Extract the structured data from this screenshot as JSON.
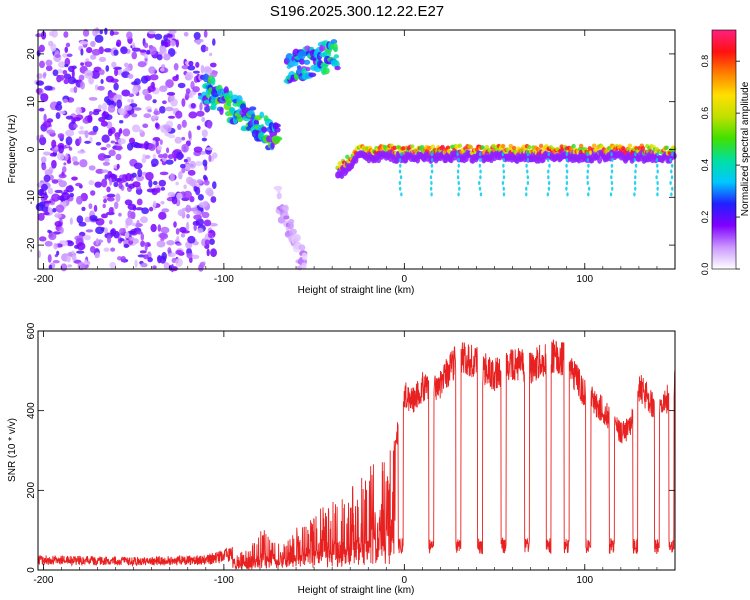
{
  "title": "S196.2025.300.12.22.E27",
  "chart_data": [
    {
      "type": "heatmap",
      "xlabel": "Height of straight line (km)",
      "ylabel": "Frequency (Hz)",
      "xlim": [
        -203,
        150
      ],
      "ylim": [
        -25,
        25
      ],
      "xticks": [
        -200,
        -100,
        0,
        100
      ],
      "xtick_labels": [
        "-200",
        "-100",
        "0",
        "100"
      ],
      "yticks": [
        -20,
        -10,
        0,
        10,
        20
      ],
      "ytick_labels": [
        "-20",
        "-10",
        "0",
        "10",
        "20"
      ],
      "colorbar": {
        "label": "Normalized spectral amplitude",
        "range": [
          0,
          0.92
        ],
        "ticks": [
          0,
          0.2,
          0.4,
          0.6,
          0.8
        ],
        "tick_labels": [
          "0.0",
          "0.2",
          "0.4",
          "0.6",
          "0.8"
        ],
        "colors": [
          "#ffffff",
          "#cc99ff",
          "#8000ff",
          "#2020ff",
          "#00c8ff",
          "#00e0a0",
          "#40e000",
          "#c0e000",
          "#ffe000",
          "#ff8000",
          "#ff1010",
          "#ff2080"
        ]
      },
      "features": [
        {
          "name": "noise",
          "x": [
            -203,
            -105
          ],
          "freq": [
            -25,
            25
          ],
          "amplitude": 0.15
        },
        {
          "name": "track-1",
          "x": [
            -112,
            -70
          ],
          "freq": [
            13,
            2
          ],
          "amplitude": 0.45
        },
        {
          "name": "track-2",
          "x": [
            -65,
            -37
          ],
          "freq": [
            17,
            20
          ],
          "amplitude": 0.4
        },
        {
          "name": "arc-low",
          "x": [
            -70,
            -55
          ],
          "freq": [
            -10,
            -25
          ],
          "amplitude": 0.1
        },
        {
          "name": "carrier",
          "x": [
            -37,
            150
          ],
          "freq": [
            0,
            0
          ],
          "amplitude": 0.85
        }
      ]
    },
    {
      "type": "line",
      "xlabel": "Height of straight line (km)",
      "ylabel": "SNR (10 * v/v)",
      "xlim": [
        -203,
        150
      ],
      "ylim": [
        0,
        600
      ],
      "xticks": [
        -200,
        -100,
        0,
        100
      ],
      "xtick_labels": [
        "-200",
        "-100",
        "0",
        "100"
      ],
      "yticks": [
        0,
        200,
        400,
        600
      ],
      "ytick_labels": [
        "0",
        "200",
        "400",
        "600"
      ],
      "color": "#e82020",
      "series": [
        {
          "name": "SNR envelope",
          "x": [
            -203,
            -150,
            -110,
            -95,
            -85,
            -80,
            -75,
            -65,
            -60,
            -45,
            -38,
            -25,
            -15,
            -5,
            0,
            5,
            10,
            15,
            25,
            30,
            40,
            50,
            60,
            70,
            80,
            90,
            100,
            110,
            120,
            125,
            130,
            140,
            145,
            150
          ],
          "y": [
            25,
            22,
            25,
            40,
            55,
            120,
            80,
            70,
            110,
            160,
            175,
            230,
            280,
            330,
            460,
            440,
            480,
            460,
            520,
            560,
            540,
            510,
            540,
            530,
            560,
            550,
            460,
            420,
            360,
            370,
            480,
            420,
            440,
            500
          ]
        }
      ],
      "dropouts": [
        -2,
        15,
        30,
        42,
        55,
        68,
        80,
        90,
        102,
        115,
        128,
        140,
        148
      ]
    }
  ]
}
